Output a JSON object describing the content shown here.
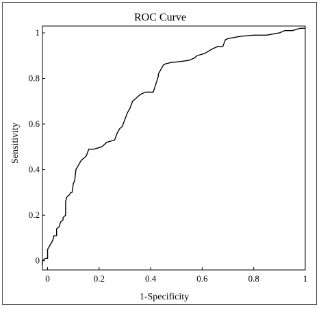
{
  "chart_data": {
    "type": "line",
    "title": "ROC Curve",
    "xlabel": "1-Specificity",
    "ylabel": "Sensitivity",
    "xlim": [
      -0.02,
      1.0
    ],
    "ylim": [
      -0.04,
      1.03
    ],
    "grid": false,
    "legend": "none",
    "line_color": "#000000",
    "x_ticks": [
      {
        "value": 0,
        "label": "0"
      },
      {
        "value": 0.2,
        "label": "0.2"
      },
      {
        "value": 0.4,
        "label": "0.4"
      },
      {
        "value": 0.6,
        "label": "0.6"
      },
      {
        "value": 0.8,
        "label": "0.8"
      },
      {
        "value": 1,
        "label": "1"
      }
    ],
    "y_ticks": [
      {
        "value": 0,
        "label": "0"
      },
      {
        "value": 0.2,
        "label": "0.2"
      },
      {
        "value": 0.4,
        "label": "0.4"
      },
      {
        "value": 0.6,
        "label": "0.6"
      },
      {
        "value": 0.8,
        "label": "0.8"
      },
      {
        "value": 1,
        "label": "1"
      }
    ],
    "series": [
      {
        "x": [
          -0.02,
          -0.02,
          -0.01,
          0.0,
          0.0,
          0.005,
          0.02,
          0.025,
          0.035,
          0.035,
          0.045,
          0.05,
          0.06,
          0.06,
          0.07,
          0.07,
          0.075,
          0.085,
          0.09,
          0.095,
          0.1,
          0.105,
          0.11,
          0.12,
          0.125,
          0.13,
          0.14,
          0.15,
          0.16,
          0.17,
          0.18,
          0.18,
          0.21,
          0.23,
          0.26,
          0.27,
          0.28,
          0.29,
          0.3,
          0.31,
          0.32,
          0.33,
          0.34,
          0.35,
          0.36,
          0.37,
          0.38,
          0.39,
          0.4,
          0.41,
          0.43,
          0.43,
          0.44,
          0.45,
          0.46,
          0.48,
          0.52,
          0.55,
          0.57,
          0.58,
          0.61,
          0.64,
          0.66,
          0.68,
          0.69,
          0.7,
          0.75,
          0.8,
          0.85,
          0.9,
          0.92,
          0.95,
          0.98,
          1.0
        ],
        "y": [
          -0.02,
          0.0,
          0.01,
          0.01,
          0.05,
          0.06,
          0.09,
          0.11,
          0.11,
          0.14,
          0.15,
          0.17,
          0.18,
          0.19,
          0.2,
          0.26,
          0.28,
          0.29,
          0.3,
          0.3,
          0.34,
          0.35,
          0.4,
          0.42,
          0.43,
          0.44,
          0.45,
          0.46,
          0.49,
          0.49,
          0.49,
          0.49,
          0.5,
          0.52,
          0.53,
          0.56,
          0.58,
          0.59,
          0.62,
          0.65,
          0.67,
          0.7,
          0.71,
          0.72,
          0.73,
          0.735,
          0.74,
          0.74,
          0.74,
          0.74,
          0.81,
          0.82,
          0.84,
          0.86,
          0.865,
          0.87,
          0.875,
          0.88,
          0.89,
          0.9,
          0.91,
          0.93,
          0.94,
          0.94,
          0.97,
          0.975,
          0.985,
          0.99,
          0.99,
          1.0,
          1.01,
          1.01,
          1.02,
          1.02
        ]
      }
    ]
  }
}
